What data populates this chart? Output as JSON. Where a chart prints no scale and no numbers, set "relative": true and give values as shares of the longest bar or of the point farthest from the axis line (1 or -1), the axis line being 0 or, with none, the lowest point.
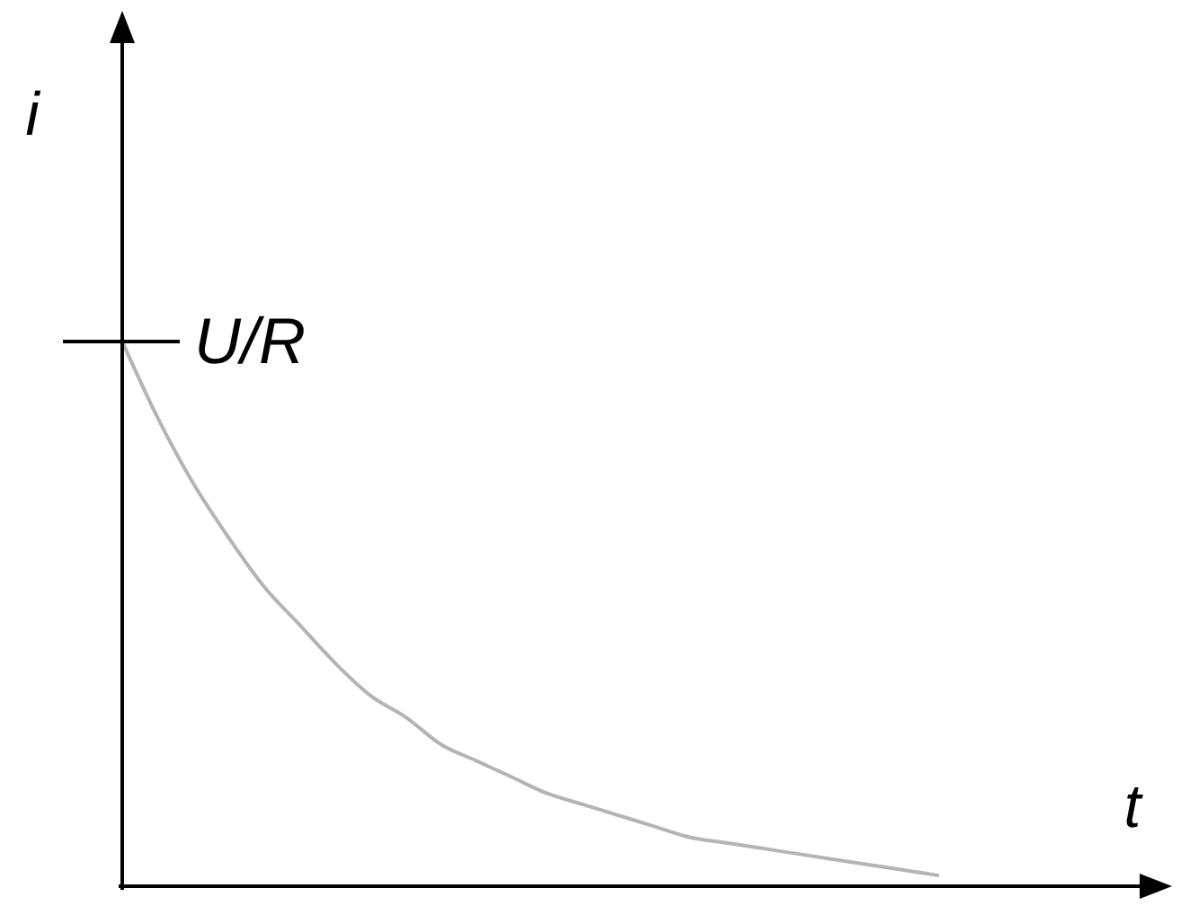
{
  "chart_data": {
    "type": "line",
    "relative": true,
    "xlabel": "t",
    "ylabel": "i",
    "color": "#b4b4b4",
    "marker": "none",
    "categories": [
      null,
      null,
      null,
      null,
      null,
      null,
      null,
      null,
      null,
      null,
      null,
      null,
      null,
      null,
      null,
      null,
      null,
      null,
      null,
      null,
      null,
      null,
      null,
      null,
      null,
      null,
      null,
      null,
      null,
      null
    ],
    "values": [
      1,
      0.86,
      0.74,
      0.64,
      0.55,
      0.48,
      0.41,
      0.35,
      0.31,
      0.26,
      0.23,
      0.2,
      0.17,
      0.15,
      0.13,
      0.11,
      0.09,
      0.08,
      0.07,
      0.06,
      0.05,
      0.04,
      0.03,
      0.02,
      null,
      null,
      null,
      null,
      null,
      null
    ],
    "annotations": [
      "U/R"
    ]
  }
}
